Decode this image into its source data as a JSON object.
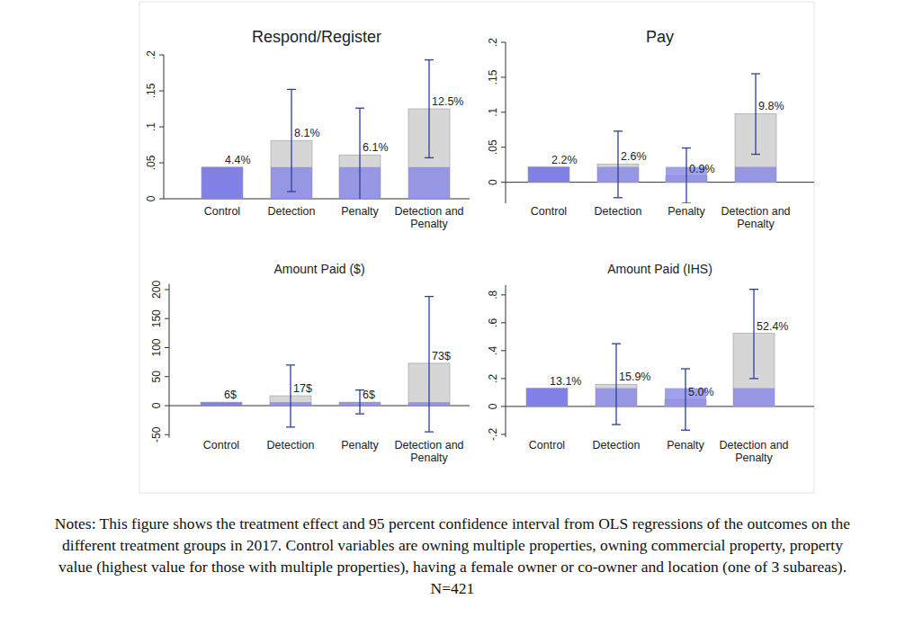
{
  "chart_data": [
    {
      "type": "bar",
      "title": "Respond/Register",
      "categories": [
        "Control",
        "Detection",
        "Penalty",
        "Detection and Penalty"
      ],
      "values": [
        0.044,
        0.081,
        0.061,
        0.125
      ],
      "value_labels": [
        "4.4%",
        "8.1%",
        "6.1%",
        "12.5%"
      ],
      "ci_low": [
        null,
        0.01,
        -0.003,
        0.057
      ],
      "ci_high": [
        null,
        0.152,
        0.126,
        0.193
      ],
      "colors": [
        "#8080e6",
        "#d6d6d6",
        "#d6d6d6",
        "#d6d6d6"
      ],
      "data_labels": true,
      "ylim": [
        0,
        0.2
      ],
      "yticks": [
        0,
        {
          "value": 0.05,
          "label": ".05"
        },
        {
          "value": 0.1,
          "label": ".1"
        },
        {
          "value": 0.15,
          "label": ".15"
        },
        {
          "value": 0.2,
          "label": ".2"
        }
      ]
    },
    {
      "type": "bar",
      "title": "Pay",
      "categories": [
        "Control",
        "Detection",
        "Penalty",
        "Detection and Penalty"
      ],
      "values": [
        0.022,
        0.026,
        0.009,
        0.098
      ],
      "value_labels": [
        "2.2%",
        "2.6%",
        "0.9%",
        "9.8%"
      ],
      "ci_low": [
        null,
        -0.022,
        -0.03,
        0.04
      ],
      "ci_high": [
        null,
        0.073,
        0.049,
        0.155
      ],
      "colors": [
        "#8080e6",
        "#d6d6d6",
        "#d6d6d6",
        "#d6d6d6"
      ],
      "data_labels": true,
      "ylim": [
        -0.03,
        0.2
      ],
      "yticks": [
        0,
        {
          "value": 0.05,
          "label": ".05"
        },
        {
          "value": 0.1,
          "label": ".1"
        },
        {
          "value": 0.15,
          "label": ".15"
        },
        {
          "value": 0.2,
          "label": ".2"
        }
      ]
    },
    {
      "type": "bar",
      "title": "Amount Paid ($)",
      "categories": [
        "Control",
        "Detection",
        "Penalty",
        "Detection and Penalty"
      ],
      "values": [
        6,
        17,
        6,
        73
      ],
      "value_labels": [
        "6$",
        "17$",
        "6$",
        "73$"
      ],
      "ci_low": [
        null,
        -37,
        -14,
        -45
      ],
      "ci_high": [
        null,
        70,
        27,
        188
      ],
      "colors": [
        "#8080e6",
        "#d6d6d6",
        "#d6d6d6",
        "#d6d6d6"
      ],
      "data_labels": true,
      "ylim": [
        -55,
        210
      ],
      "yticks": [
        -50,
        0,
        50,
        100,
        150,
        200
      ]
    },
    {
      "type": "bar",
      "title": "Amount Paid (IHS)",
      "categories": [
        "Control",
        "Detection",
        "Penalty",
        "Detection and Penalty"
      ],
      "values": [
        0.131,
        0.159,
        0.05,
        0.524
      ],
      "value_labels": [
        "13.1%",
        "15.9%",
        "5.0%",
        "52.4%"
      ],
      "ci_low": [
        null,
        -0.13,
        -0.17,
        0.2
      ],
      "ci_high": [
        null,
        0.45,
        0.27,
        0.84
      ],
      "colors": [
        "#8080e6",
        "#d6d6d6",
        "#d6d6d6",
        "#d6d6d6"
      ],
      "data_labels": true,
      "ylim": [
        -0.22,
        0.87
      ],
      "yticks": [
        {
          "value": -0.2,
          "label": "-.2"
        },
        0,
        {
          "value": 0.2,
          "label": ".2"
        },
        {
          "value": 0.4,
          "label": ".4"
        },
        {
          "value": 0.6,
          "label": ".6"
        },
        {
          "value": 0.8,
          "label": ".8"
        }
      ]
    }
  ],
  "notes": "Notes: This figure shows the treatment effect and 95 percent confidence interval from OLS regressions of the outcomes on the different treatment groups in 2017. Control variables are owning multiple properties, owning commercial property, property value (highest value for those with multiple properties), having a female owner or co-owner and location (one of 3 subareas). N=421"
}
